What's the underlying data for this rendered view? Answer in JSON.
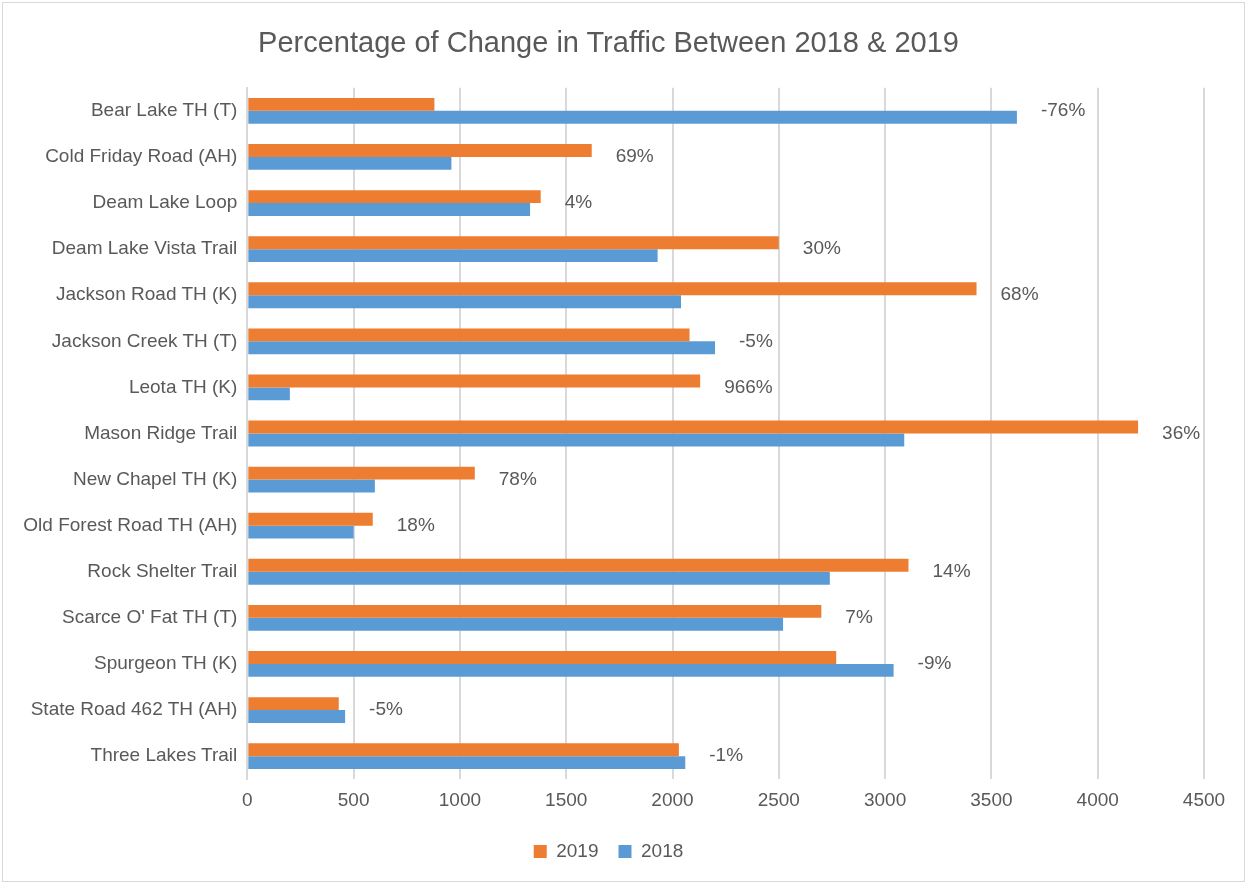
{
  "chart_data": {
    "type": "bar",
    "orientation": "horizontal",
    "title": "Percentage of Change in Traffic Between 2018 & 2019",
    "categories": [
      "Bear Lake TH (T)",
      "Cold Friday Road (AH)",
      "Deam Lake Loop",
      "Deam Lake Vista Trail",
      "Jackson Road TH (K)",
      "Jackson Creek TH (T)",
      "Leota TH (K)",
      "Mason Ridge Trail",
      "New Chapel TH (K)",
      "Old Forest Road TH (AH)",
      "Rock Shelter Trail",
      "Scarce O' Fat TH (T)",
      "Spurgeon TH (K)",
      "State Road 462 TH (AH)",
      "Three Lakes Trail"
    ],
    "series": [
      {
        "name": "2019",
        "color": "#ed7d31",
        "values": [
          880,
          1620,
          1380,
          2500,
          3430,
          2080,
          2130,
          4190,
          1070,
          590,
          3110,
          2700,
          2770,
          430,
          2030
        ]
      },
      {
        "name": "2018",
        "color": "#5b9bd5",
        "values": [
          3620,
          960,
          1330,
          1930,
          2040,
          2200,
          200,
          3090,
          600,
          500,
          2740,
          2520,
          3040,
          460,
          2060
        ]
      }
    ],
    "xlim": [
      0,
      4500
    ],
    "xticks": [
      0,
      500,
      1000,
      1500,
      2000,
      2500,
      3000,
      3500,
      4000,
      4500
    ],
    "grid": "x",
    "legend": "bottom",
    "annotations": [
      {
        "text": "-76%",
        "x": 3620,
        "y": "Bear Lake TH (T)"
      },
      {
        "text": "69%",
        "x": 1620,
        "y": "Cold Friday Road (AH)"
      },
      {
        "text": "4%",
        "x": 1380,
        "y": "Deam Lake Loop"
      },
      {
        "text": "30%",
        "x": 2500,
        "y": "Deam Lake Vista Trail"
      },
      {
        "text": "68%",
        "x": 3430,
        "y": "Jackson Road TH (K)"
      },
      {
        "text": "-5%",
        "x": 2200,
        "y": "Jackson Creek TH (T)"
      },
      {
        "text": "966%",
        "x": 2130,
        "y": "Leota TH (K)"
      },
      {
        "text": "36%",
        "x": 4190,
        "y": "Mason Ridge Trail"
      },
      {
        "text": "78%",
        "x": 1070,
        "y": "New Chapel TH (K)"
      },
      {
        "text": "18%",
        "x": 590,
        "y": "Old Forest Road TH (AH)"
      },
      {
        "text": "14%",
        "x": 3110,
        "y": "Rock Shelter Trail"
      },
      {
        "text": "7%",
        "x": 2700,
        "y": "Scarce O' Fat TH (T)"
      },
      {
        "text": "-9%",
        "x": 3040,
        "y": "Spurgeon TH (K)"
      },
      {
        "text": "-5%",
        "x": 460,
        "y": "State Road 462 TH (AH)"
      },
      {
        "text": "-1%",
        "x": 2060,
        "y": "Three Lakes Trail"
      }
    ]
  }
}
